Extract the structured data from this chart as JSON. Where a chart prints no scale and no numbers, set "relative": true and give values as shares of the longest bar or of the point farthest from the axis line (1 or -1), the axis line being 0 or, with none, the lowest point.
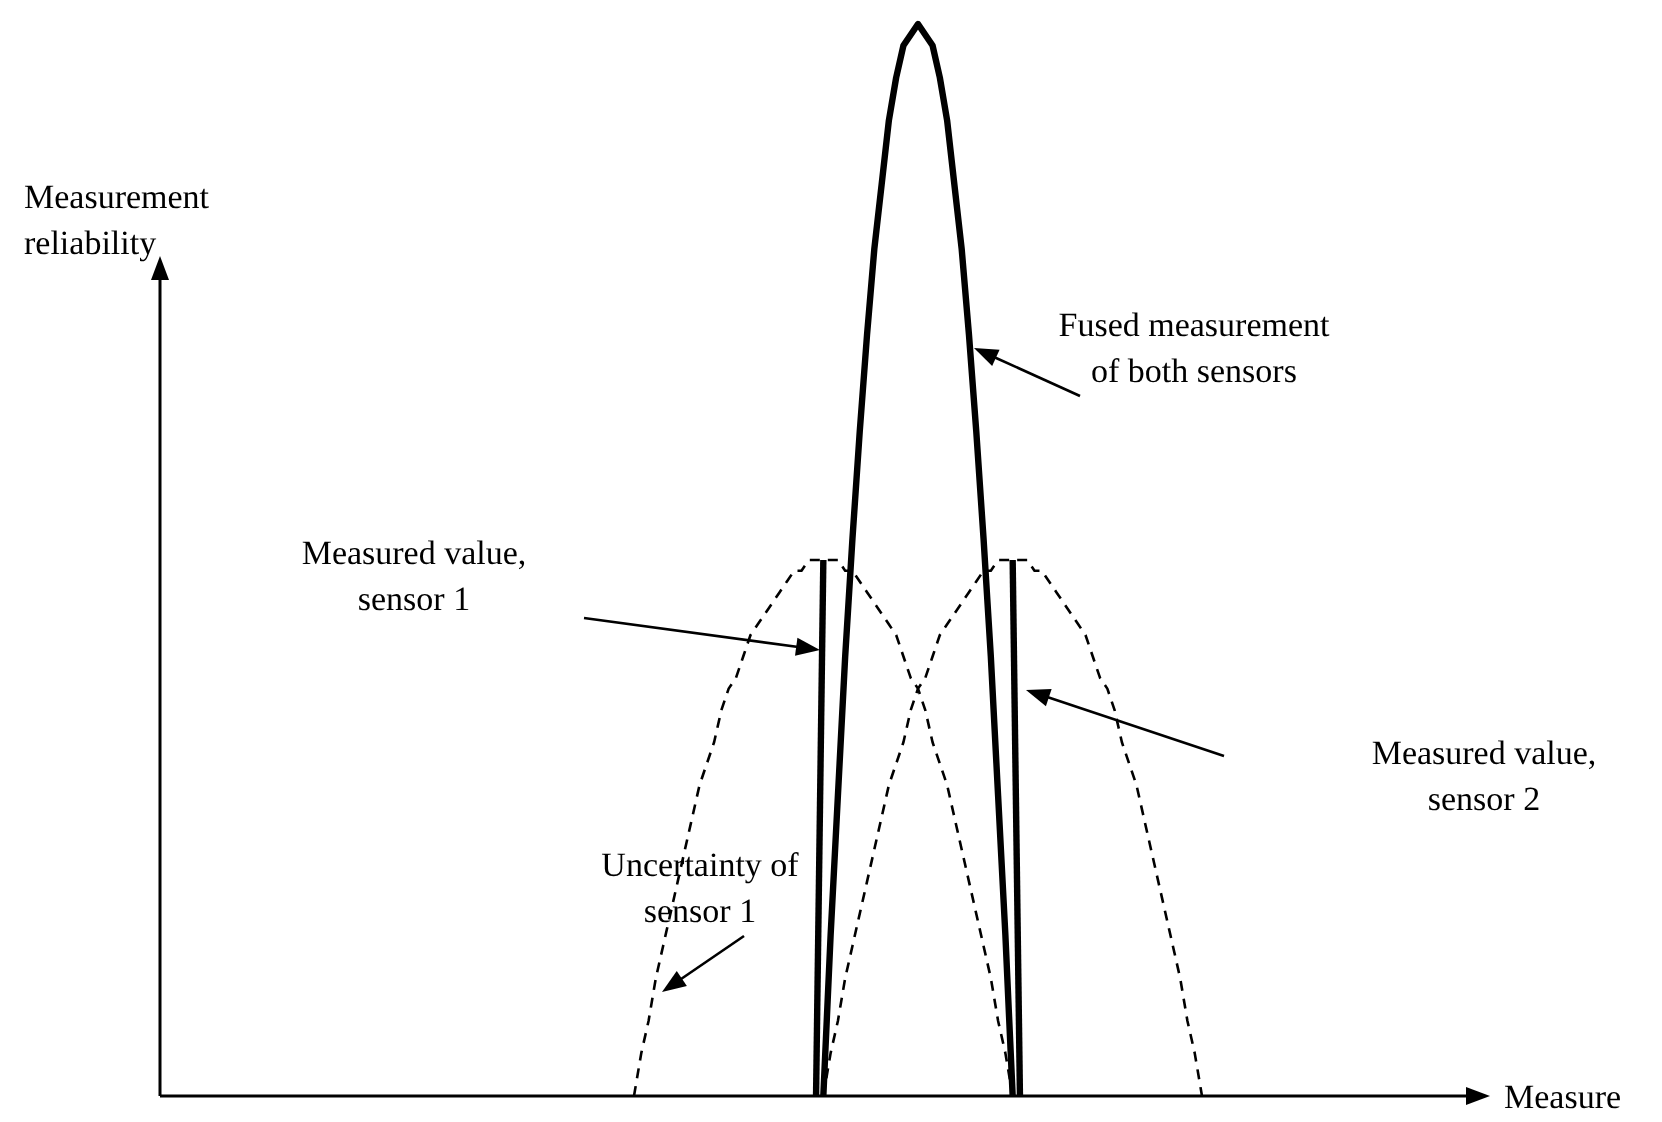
{
  "chart_data": {
    "type": "line",
    "relative": true,
    "categories": [
      null,
      null,
      null,
      null,
      null,
      null,
      null,
      null,
      null,
      null,
      null,
      null,
      null,
      null,
      null,
      null,
      null,
      null,
      null,
      null,
      null,
      null,
      null,
      null,
      null,
      null,
      null,
      null,
      null,
      null,
      null,
      null,
      null,
      null,
      null,
      null,
      null,
      null,
      null,
      null,
      null,
      null,
      null,
      null,
      null,
      null,
      null,
      null,
      null,
      null,
      null,
      null,
      null,
      null,
      null,
      null,
      null,
      null,
      null,
      null,
      null,
      null,
      null,
      null,
      null,
      null,
      null,
      null,
      null,
      null,
      null,
      null,
      null,
      null,
      null,
      null,
      null,
      null,
      null
    ],
    "series": [
      {
        "values": [
          0,
          0.04,
          0.07,
          0.11,
          0.14,
          0.17,
          0.2,
          0.23,
          0.26,
          0.29,
          0.31,
          0.33,
          0.36,
          0.38,
          0.39,
          0.41,
          0.43,
          0.44,
          0.45,
          0.46,
          0.47,
          0.48,
          0.49,
          0.49,
          0.5,
          0.5,
          0.5,
          0.5,
          0.5,
          0.49,
          0.49,
          0.48,
          0.47,
          0.46,
          0.45,
          0.44,
          0.43,
          0.41,
          0.39,
          0.38,
          0.36,
          0.33,
          0.31,
          0.29,
          0.26,
          0.23,
          0.2,
          0.17,
          0.14,
          0.11,
          0.07,
          0.04,
          0,
          null,
          null,
          null,
          null,
          null,
          null,
          null,
          null,
          null,
          null,
          null,
          null,
          null,
          null,
          null,
          null,
          null,
          null,
          null,
          null,
          null,
          null,
          null,
          null,
          null,
          null
        ],
        "color": "#000000",
        "line_style": "dashed"
      },
      {
        "values": [
          null,
          null,
          null,
          null,
          null,
          null,
          null,
          null,
          null,
          null,
          null,
          null,
          null,
          null,
          null,
          null,
          null,
          null,
          null,
          null,
          null,
          null,
          null,
          null,
          null,
          null,
          0,
          0.04,
          0.07,
          0.11,
          0.14,
          0.17,
          0.2,
          0.23,
          0.26,
          0.29,
          0.31,
          0.33,
          0.36,
          0.38,
          0.39,
          0.41,
          0.43,
          0.44,
          0.45,
          0.46,
          0.47,
          0.48,
          0.49,
          0.49,
          0.5,
          0.5,
          0.5,
          0.5,
          0.5,
          0.49,
          0.49,
          0.48,
          0.47,
          0.46,
          0.45,
          0.44,
          0.43,
          0.41,
          0.39,
          0.38,
          0.36,
          0.33,
          0.31,
          0.29,
          0.26,
          0.23,
          0.2,
          0.17,
          0.14,
          0.11,
          0.07,
          0.04,
          0
        ],
        "color": "#000000",
        "line_style": "dashed"
      },
      {
        "values": [
          null,
          null,
          null,
          null,
          null,
          null,
          null,
          null,
          null,
          null,
          null,
          null,
          null,
          null,
          null,
          null,
          null,
          null,
          null,
          null,
          null,
          null,
          null,
          null,
          null,
          null,
          0,
          0.15,
          0.28,
          0.41,
          0.52,
          0.62,
          0.71,
          0.79,
          0.85,
          0.91,
          0.95,
          0.98,
          0.99,
          1,
          0.99,
          0.98,
          0.95,
          0.91,
          0.85,
          0.79,
          0.71,
          0.62,
          0.52,
          0.41,
          0.28,
          0.15,
          0,
          null,
          null,
          null,
          null,
          null,
          null,
          null,
          null,
          null,
          null,
          null,
          null,
          null,
          null,
          null,
          null,
          null,
          null,
          null,
          null,
          null,
          null,
          null,
          null,
          null,
          null
        ],
        "color": "#000000",
        "line_style": "solid"
      },
      {
        "values": [
          null,
          null,
          null,
          null,
          null,
          null,
          null,
          null,
          null,
          null,
          null,
          null,
          null,
          null,
          null,
          null,
          null,
          null,
          null,
          null,
          null,
          null,
          null,
          null,
          null,
          0,
          0.5,
          null,
          null,
          null,
          null,
          null,
          null,
          null,
          null,
          null,
          null,
          null,
          null,
          null,
          null,
          null,
          null,
          null,
          null,
          null,
          null,
          null,
          null,
          null,
          null,
          null,
          null,
          null,
          null,
          null,
          null,
          null,
          null,
          null,
          null,
          null,
          null,
          null,
          null,
          null,
          null,
          null,
          null,
          null,
          null,
          null,
          null,
          null,
          null,
          null,
          null,
          null,
          null
        ],
        "color": "#000000",
        "line_style": "solid"
      },
      {
        "values": [
          null,
          null,
          null,
          null,
          null,
          null,
          null,
          null,
          null,
          null,
          null,
          null,
          null,
          null,
          null,
          null,
          null,
          null,
          null,
          null,
          null,
          null,
          null,
          null,
          null,
          null,
          null,
          null,
          null,
          null,
          null,
          null,
          null,
          null,
          null,
          null,
          null,
          null,
          null,
          null,
          null,
          null,
          null,
          null,
          null,
          null,
          null,
          null,
          null,
          null,
          null,
          null,
          0.5,
          0,
          null,
          null,
          null,
          null,
          null,
          null,
          null,
          null,
          null,
          null,
          null,
          null,
          null,
          null,
          null,
          null,
          null,
          null,
          null,
          null,
          null,
          null,
          null,
          null,
          null
        ],
        "color": "#000000",
        "line_style": "solid"
      }
    ],
    "annotations": [
      "Fused measurement\nof both sensors",
      "Measured value,\nsensor 1",
      "Measured value,\nsensor 2",
      "Uncertainty of\nsensor 1",
      "Measure",
      "Measurement\nreliability"
    ]
  }
}
